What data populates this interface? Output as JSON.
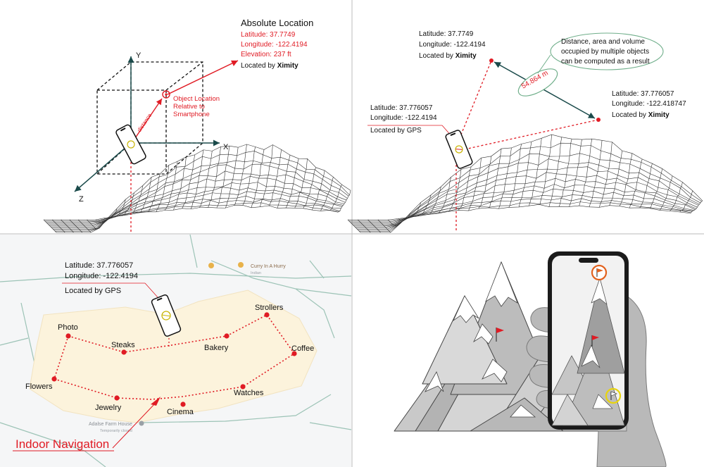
{
  "panel_tl": {
    "title": "Absolute Location",
    "latitude": "Latitude: 37.7749",
    "longitude": "Longitude: -122.4194",
    "elevation": "Elevation: 237 ft",
    "located_by_prefix": "Located by ",
    "located_by_source": "Ximity",
    "object_label_1": "Object Location",
    "object_label_2": "Relative to",
    "object_label_3": "Smartphone",
    "distance_label": "distance",
    "axis_x": "X",
    "axis_y": "Y",
    "axis_z": "Z"
  },
  "panel_tr": {
    "point_a_lat": "Latitude: 37.7749",
    "point_a_lon": "Longitude: -122.4194",
    "point_a_prefix": "Located by ",
    "point_a_source": "Ximity",
    "point_b_lat": "Latitude: 37.776057",
    "point_b_lon": "Longitude: -122.418747",
    "point_b_prefix": "Located by ",
    "point_b_source": "Ximity",
    "phone_lat": "Latitude: 37.776057",
    "phone_lon": "Longitude: -122.4194",
    "phone_located": "Located by GPS",
    "distance_value": "54.864 m",
    "note_line_1": "Distance, area and volume",
    "note_line_2": "occupied by multiple objects",
    "note_line_3": "can be computed as a result"
  },
  "panel_bl": {
    "phone_lat": "Latitude: 37.776057",
    "phone_lon": "Longitude: -122.4194",
    "phone_located": "Located by GPS",
    "map_label_top": "Curry In A Hurry",
    "map_label_top_sub": "Indian",
    "map_label_bottom": "Adalse Farm House",
    "map_label_bottom_sub": "Temporarily closed",
    "title": "Indoor Navigation",
    "stores": [
      "Photo",
      "Steaks",
      "Bakery",
      "Strollers",
      "Coffee",
      "Watches",
      "Cinema",
      "Jewelry",
      "Flowers"
    ]
  },
  "colors": {
    "accent_red": "#e01b24",
    "map_area": "#fcf3dc",
    "map_road": "#9cc3b6",
    "ellipse": "#6fae8a",
    "pin_orange": "#e2611d",
    "pin_yellow": "#e8d40c"
  }
}
